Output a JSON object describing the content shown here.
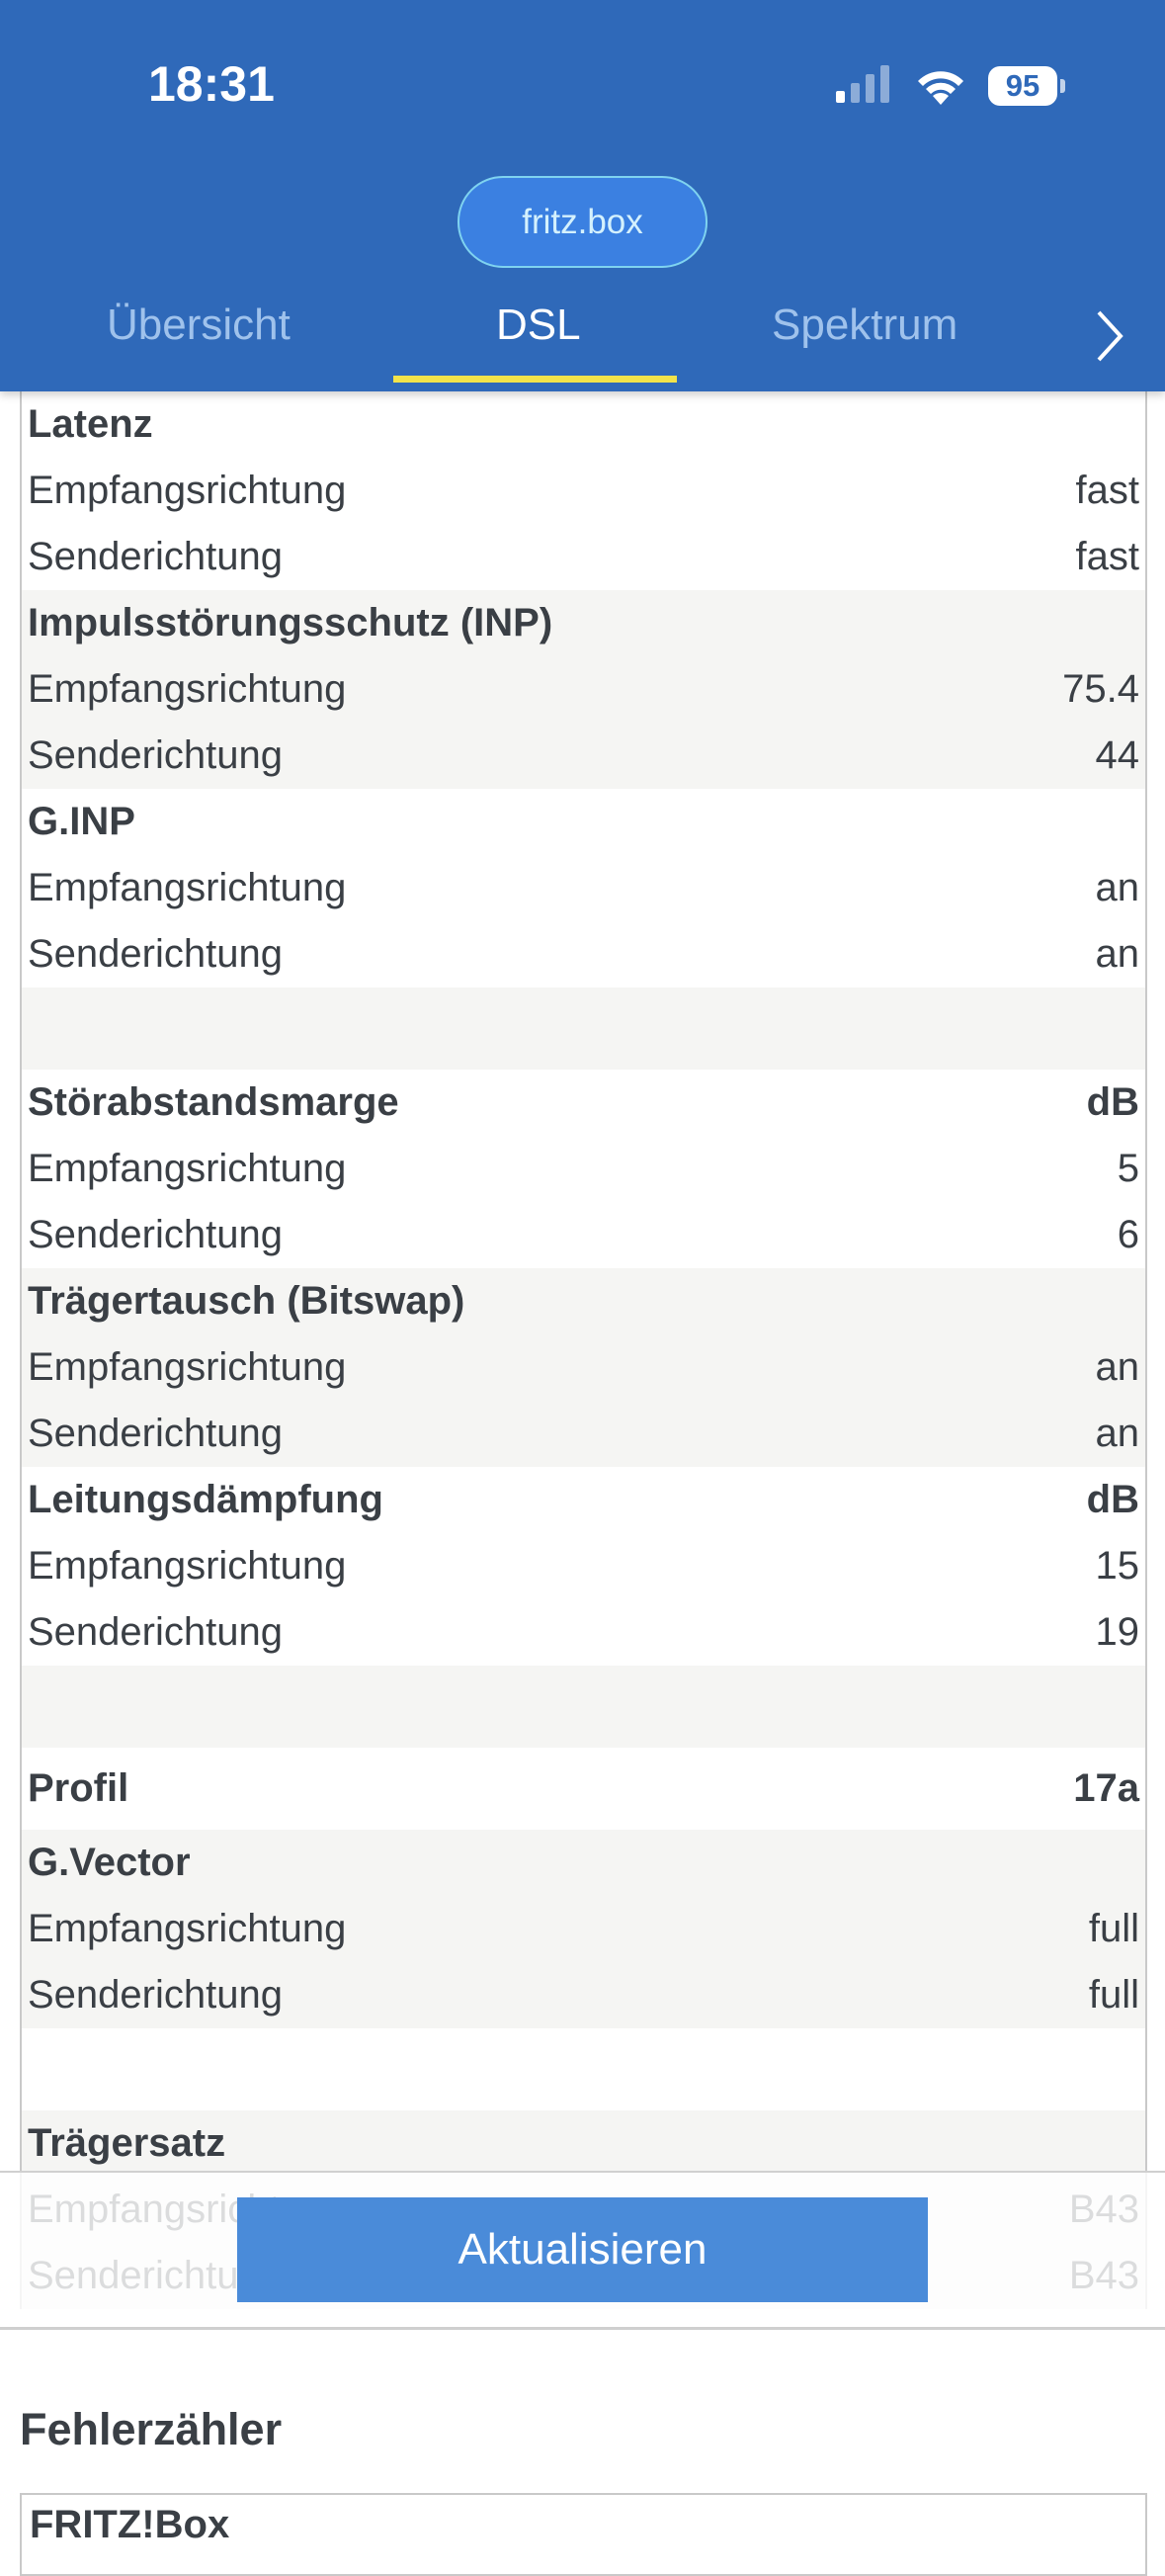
{
  "status": {
    "time": "18:31",
    "battery": "95"
  },
  "host": "fritz.box",
  "tabs": [
    "Übersicht",
    "DSL",
    "Spektrum"
  ],
  "blocks": [
    [
      {
        "title": "Latenz",
        "rows": [
          {
            "label": "Empfangsrichtung",
            "value": "fast"
          },
          {
            "label": "Senderichtung",
            "value": "fast"
          }
        ]
      },
      {
        "title": "Impulsstörungsschutz (INP)",
        "rows": [
          {
            "label": "Empfangsrichtung",
            "value": "75.4"
          },
          {
            "label": "Senderichtung",
            "value": "44"
          }
        ]
      },
      {
        "title": "G.INP",
        "rows": [
          {
            "label": "Empfangsrichtung",
            "value": "an"
          },
          {
            "label": "Senderichtung",
            "value": "an"
          }
        ]
      }
    ],
    [
      {
        "title": "Störabstandsmarge",
        "value": "dB",
        "rows": [
          {
            "label": "Empfangsrichtung",
            "value": "5"
          },
          {
            "label": "Senderichtung",
            "value": "6"
          }
        ]
      },
      {
        "title": "Trägertausch (Bitswap)",
        "rows": [
          {
            "label": "Empfangsrichtung",
            "value": "an"
          },
          {
            "label": "Senderichtung",
            "value": "an"
          }
        ]
      },
      {
        "title": "Leitungsdämpfung",
        "value": "dB",
        "rows": [
          {
            "label": "Empfangsrichtung",
            "value": "15"
          },
          {
            "label": "Senderichtung",
            "value": "19"
          }
        ]
      }
    ],
    [
      {
        "title": "Profil",
        "value": "17a",
        "rows": []
      },
      {
        "title": "G.Vector",
        "rows": [
          {
            "label": "Empfangsrichtung",
            "value": "full"
          },
          {
            "label": "Senderichtung",
            "value": "full"
          }
        ]
      }
    ],
    [
      {
        "title": "Trägersatz",
        "rows": [
          {
            "label": "Empfangsrichtung",
            "value": "B43"
          },
          {
            "label": "Senderichtung",
            "value": "B43"
          }
        ]
      }
    ]
  ],
  "button": "Aktualisieren",
  "errors": {
    "title": "Fehlerzähler",
    "box_title": "FRITZ!Box"
  }
}
